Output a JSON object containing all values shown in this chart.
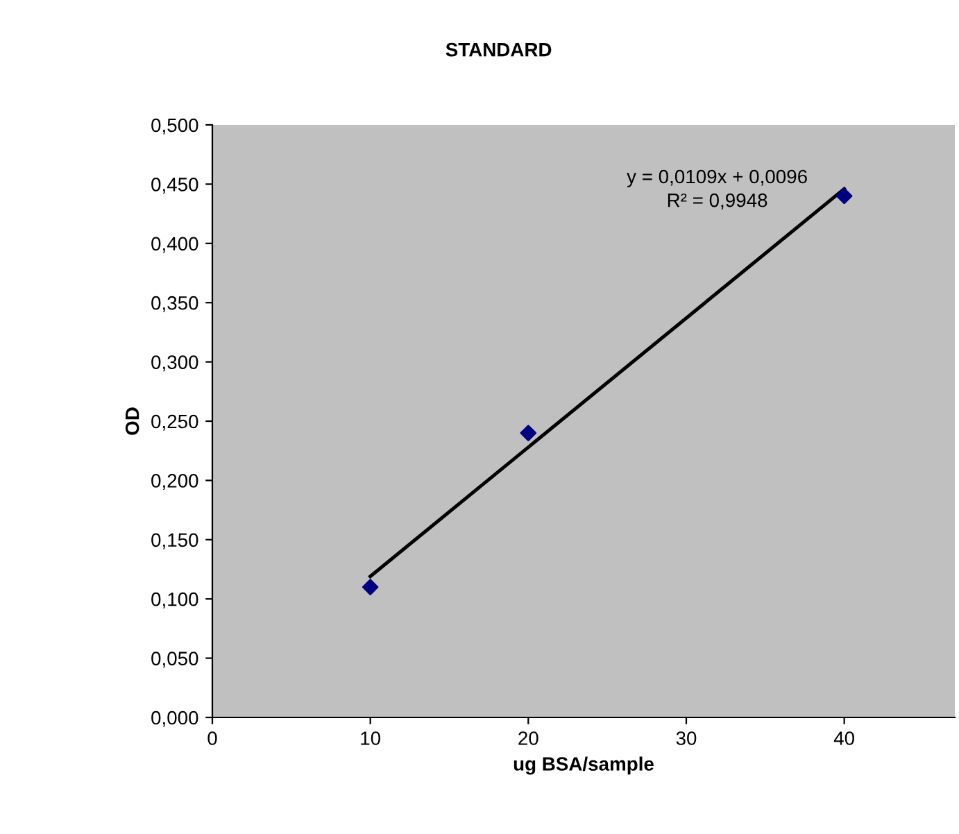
{
  "chart_data": {
    "type": "scatter",
    "title": "STANDARD",
    "xlabel": "ug BSA/sample",
    "ylabel": "OD",
    "xlim": [
      0,
      47
    ],
    "ylim": [
      0,
      0.5
    ],
    "xticks": [
      0,
      10,
      20,
      30,
      40
    ],
    "yticks": [
      {
        "value": 0,
        "label": "0,000"
      },
      {
        "value": 0.05,
        "label": "0,050"
      },
      {
        "value": 0.1,
        "label": "0,100"
      },
      {
        "value": 0.15,
        "label": "0,150"
      },
      {
        "value": 0.2,
        "label": "0,200"
      },
      {
        "value": 0.25,
        "label": "0,250"
      },
      {
        "value": 0.3,
        "label": "0,300"
      },
      {
        "value": 0.35,
        "label": "0,350"
      },
      {
        "value": 0.4,
        "label": "0,400"
      },
      {
        "value": 0.45,
        "label": "0,450"
      },
      {
        "value": 0.5,
        "label": "0,500"
      }
    ],
    "grid": false,
    "legend": false,
    "series": [
      {
        "color": "#000080",
        "marker": "diamond",
        "x": [
          10,
          20,
          40
        ],
        "values": [
          0.11,
          0.24,
          0.44
        ]
      },
      {
        "type": "line",
        "color": "#000000",
        "line_style": "solid",
        "x": [
          10,
          40
        ],
        "values": [
          0.119,
          0.446
        ]
      }
    ],
    "annotations": [
      "y = 0,0109x + 0,0096",
      "R² = 0,9948"
    ]
  }
}
